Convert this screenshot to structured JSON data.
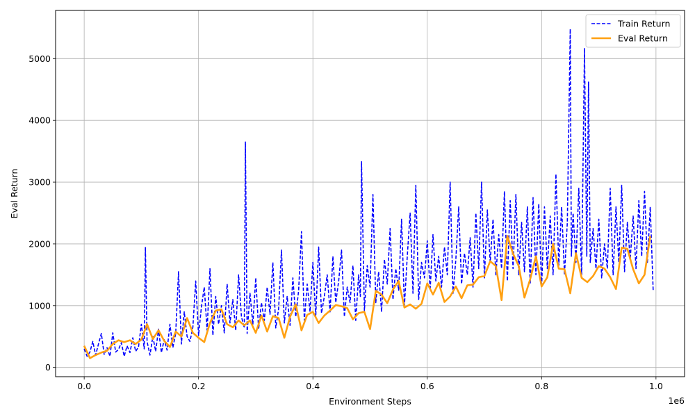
{
  "chart_data": {
    "type": "line",
    "xlabel": "Environment Steps",
    "ylabel": "Eval Return",
    "x_offset_label": "1e6",
    "xlim": [
      -50000,
      1050000
    ],
    "ylim": [
      -150,
      5780
    ],
    "xticks": [
      0.0,
      0.2,
      0.4,
      0.6,
      0.8,
      1.0
    ],
    "xtick_labels": [
      "0.0",
      "0.2",
      "0.4",
      "0.6",
      "0.8",
      "1.0"
    ],
    "yticks": [
      0,
      1000,
      2000,
      3000,
      4000,
      5000
    ],
    "ytick_labels": [
      "0",
      "1000",
      "2000",
      "3000",
      "4000",
      "5000"
    ],
    "grid": true,
    "legend_position": "top-right",
    "series": [
      {
        "name": "Train Return",
        "color": "#0000ff",
        "style": "dashed",
        "x": [
          0,
          5000,
          10000,
          15000,
          20000,
          25000,
          30000,
          35000,
          40000,
          45000,
          50000,
          55000,
          60000,
          65000,
          70000,
          75000,
          80000,
          85000,
          90000,
          95000,
          100000,
          105000,
          107000,
          110000,
          115000,
          120000,
          125000,
          130000,
          135000,
          140000,
          145000,
          150000,
          155000,
          160000,
          165000,
          170000,
          175000,
          180000,
          185000,
          190000,
          195000,
          200000,
          205000,
          210000,
          215000,
          220000,
          225000,
          230000,
          235000,
          240000,
          245000,
          250000,
          255000,
          260000,
          265000,
          270000,
          275000,
          280000,
          282000,
          285000,
          290000,
          295000,
          300000,
          305000,
          310000,
          315000,
          320000,
          325000,
          330000,
          335000,
          340000,
          345000,
          350000,
          355000,
          360000,
          365000,
          370000,
          375000,
          380000,
          385000,
          390000,
          395000,
          400000,
          405000,
          410000,
          415000,
          420000,
          425000,
          430000,
          435000,
          440000,
          445000,
          450000,
          455000,
          460000,
          465000,
          470000,
          475000,
          480000,
          483000,
          485000,
          490000,
          495000,
          500000,
          505000,
          510000,
          515000,
          520000,
          525000,
          530000,
          535000,
          540000,
          545000,
          550000,
          555000,
          560000,
          565000,
          570000,
          575000,
          580000,
          585000,
          590000,
          595000,
          600000,
          605000,
          610000,
          615000,
          620000,
          625000,
          630000,
          635000,
          640000,
          645000,
          650000,
          655000,
          660000,
          665000,
          670000,
          675000,
          680000,
          685000,
          690000,
          695000,
          700000,
          705000,
          710000,
          715000,
          720000,
          725000,
          730000,
          735000,
          740000,
          745000,
          750000,
          755000,
          760000,
          765000,
          770000,
          775000,
          780000,
          785000,
          790000,
          795000,
          800000,
          805000,
          810000,
          815000,
          820000,
          825000,
          830000,
          835000,
          840000,
          845000,
          850000,
          852000,
          855000,
          860000,
          865000,
          870000,
          875000,
          879000,
          882000,
          885000,
          890000,
          895000,
          900000,
          905000,
          910000,
          915000,
          920000,
          925000,
          930000,
          935000,
          940000,
          945000,
          950000,
          955000,
          960000,
          965000,
          970000,
          975000,
          980000,
          985000,
          990000,
          995000
        ],
        "y": [
          300,
          180,
          250,
          420,
          200,
          380,
          550,
          210,
          320,
          180,
          560,
          250,
          290,
          400,
          180,
          350,
          240,
          480,
          260,
          330,
          700,
          300,
          1950,
          420,
          200,
          500,
          260,
          620,
          240,
          450,
          280,
          700,
          320,
          550,
          1550,
          380,
          900,
          500,
          420,
          650,
          1400,
          520,
          980,
          1300,
          600,
          1600,
          520,
          1150,
          700,
          1000,
          560,
          1350,
          720,
          1100,
          600,
          1500,
          820,
          640,
          3650,
          550,
          1200,
          700,
          1450,
          620,
          1050,
          760,
          1300,
          860,
          1700,
          640,
          950,
          1900,
          720,
          1150,
          680,
          1450,
          820,
          1250,
          2200,
          760,
          1350,
          900,
          1700,
          820,
          1950,
          880,
          1150,
          1500,
          900,
          1800,
          1050,
          1400,
          1900,
          820,
          1300,
          1050,
          1650,
          760,
          1500,
          1150,
          3330,
          920,
          1650,
          1300,
          2800,
          1050,
          1550,
          900,
          1750,
          1350,
          2250,
          1100,
          1600,
          1250,
          2400,
          1000,
          1800,
          2500,
          1200,
          2950,
          1100,
          1700,
          1450,
          2050,
          1250,
          2150,
          1400,
          1800,
          1300,
          1950,
          1500,
          3000,
          1200,
          1750,
          2600,
          1350,
          1850,
          1500,
          2100,
          1300,
          2500,
          1600,
          3000,
          1450,
          2550,
          1700,
          2400,
          1500,
          2150,
          1600,
          2850,
          1400,
          2700,
          1600,
          2800,
          1500,
          2350,
          1550,
          2600,
          1350,
          2750,
          1500,
          2650,
          1300,
          2600,
          1600,
          2450,
          1500,
          3130,
          1650,
          2600,
          1500,
          2350,
          5480,
          1800,
          2500,
          1700,
          2900,
          1500,
          5170,
          1800,
          4620,
          1700,
          2250,
          1600,
          2400,
          1450,
          2000,
          1600,
          2900,
          1500,
          2600,
          1700,
          2950,
          1550,
          2350,
          1750,
          2450,
          1600,
          2700,
          1800,
          2850,
          1700,
          2600,
          1250
        ]
      },
      {
        "name": "Eval Return",
        "color": "#ffa011",
        "style": "solid",
        "x": [
          0,
          10000,
          20000,
          30000,
          40000,
          50000,
          60000,
          70000,
          80000,
          90000,
          100000,
          110000,
          120000,
          130000,
          140000,
          150000,
          160000,
          170000,
          180000,
          190000,
          200000,
          210000,
          220000,
          230000,
          240000,
          250000,
          260000,
          270000,
          280000,
          290000,
          300000,
          310000,
          320000,
          330000,
          340000,
          350000,
          360000,
          370000,
          380000,
          390000,
          400000,
          410000,
          420000,
          430000,
          440000,
          450000,
          460000,
          470000,
          480000,
          490000,
          500000,
          510000,
          520000,
          530000,
          540000,
          550000,
          560000,
          570000,
          580000,
          590000,
          600000,
          610000,
          620000,
          630000,
          640000,
          650000,
          660000,
          670000,
          680000,
          690000,
          700000,
          710000,
          720000,
          730000,
          740000,
          750000,
          760000,
          770000,
          780000,
          790000,
          800000,
          810000,
          820000,
          830000,
          840000,
          850000,
          860000,
          870000,
          880000,
          890000,
          900000,
          910000,
          920000,
          930000,
          940000,
          950000,
          960000,
          970000,
          980000,
          990000
        ],
        "y": [
          350,
          150,
          200,
          240,
          270,
          380,
          440,
          410,
          440,
          380,
          450,
          700,
          460,
          600,
          430,
          330,
          580,
          500,
          800,
          560,
          480,
          410,
          720,
          920,
          940,
          700,
          650,
          760,
          680,
          760,
          560,
          840,
          580,
          830,
          800,
          480,
          820,
          1020,
          600,
          850,
          900,
          720,
          840,
          920,
          1010,
          990,
          960,
          780,
          880,
          900,
          620,
          1240,
          1180,
          1040,
          1260,
          1400,
          970,
          1020,
          950,
          1030,
          1360,
          1180,
          1370,
          1060,
          1150,
          1310,
          1120,
          1330,
          1340,
          1460,
          1480,
          1720,
          1640,
          1090,
          2130,
          1840,
          1640,
          1130,
          1430,
          1800,
          1310,
          1460,
          2000,
          1600,
          1590,
          1200,
          1850,
          1450,
          1380,
          1480,
          1640,
          1600,
          1460,
          1270,
          1940,
          1920,
          1590,
          1360,
          1500,
          2130
        ]
      }
    ]
  }
}
